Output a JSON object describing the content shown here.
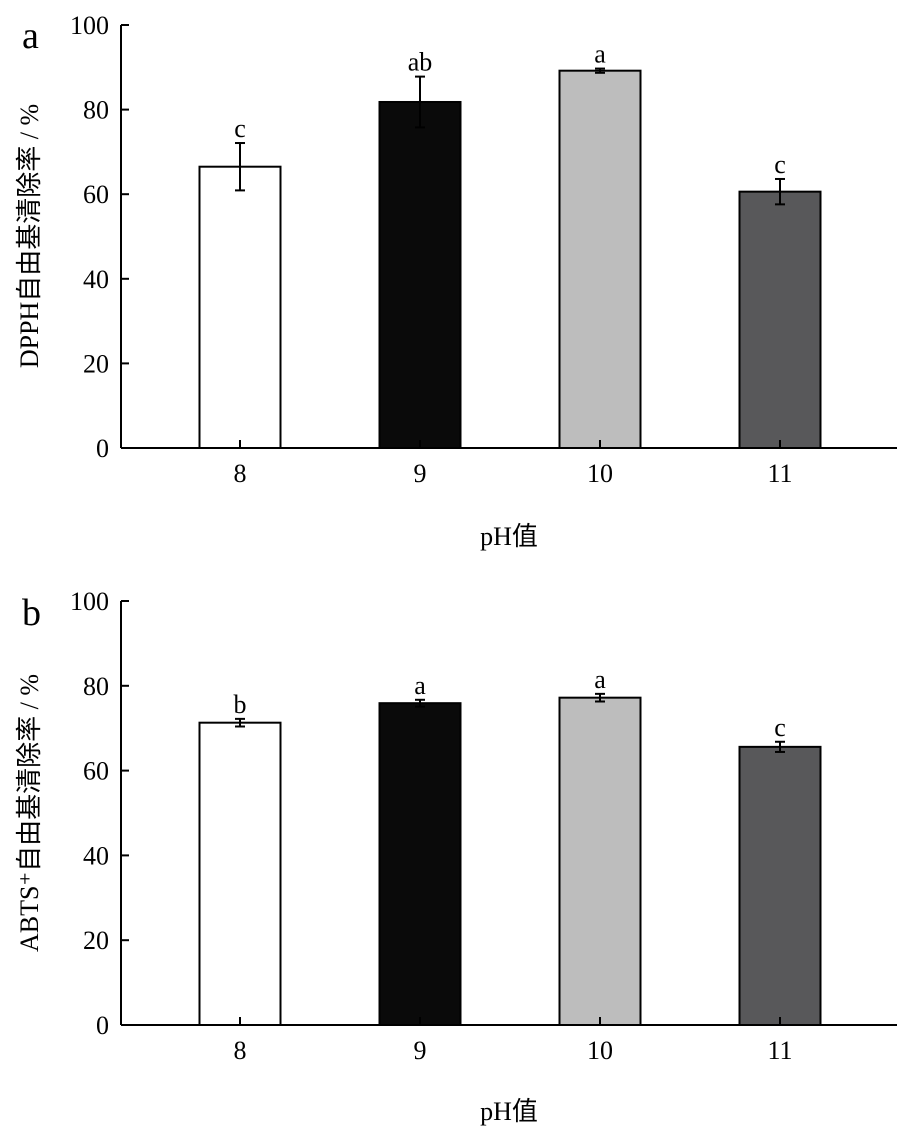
{
  "chart_data": [
    {
      "type": "bar",
      "panel_label": "a",
      "categories": [
        "8",
        "9",
        "10",
        "11"
      ],
      "values": [
        66.5,
        81.8,
        89.2,
        60.6
      ],
      "errors": [
        5.6,
        6.0,
        0.5,
        3.0
      ],
      "significance": [
        "c",
        "ab",
        "a",
        "c"
      ],
      "colors": [
        "#ffffff",
        "#0a0a0a",
        "#bdbdbd",
        "#58585a"
      ],
      "xlabel": "pH值",
      "ylabel": "DPPH自由基清除率 / %",
      "ylim": [
        0,
        100
      ],
      "yticks": [
        0,
        20,
        40,
        60,
        80,
        100
      ],
      "grid": false,
      "legend": "none"
    },
    {
      "type": "bar",
      "panel_label": "b",
      "categories": [
        "8",
        "9",
        "10",
        "11"
      ],
      "values": [
        71.3,
        75.9,
        77.2,
        65.6
      ],
      "errors": [
        0.9,
        0.8,
        0.9,
        1.2
      ],
      "significance": [
        "b",
        "a",
        "a",
        "c"
      ],
      "colors": [
        "#ffffff",
        "#0a0a0a",
        "#bdbdbd",
        "#58585a"
      ],
      "xlabel": "pH值",
      "ylabel": "ABTS⁺自由基清除率 / %",
      "ylim": [
        0,
        100
      ],
      "yticks": [
        0,
        20,
        40,
        60,
        80,
        100
      ],
      "grid": false,
      "legend": "none"
    }
  ]
}
